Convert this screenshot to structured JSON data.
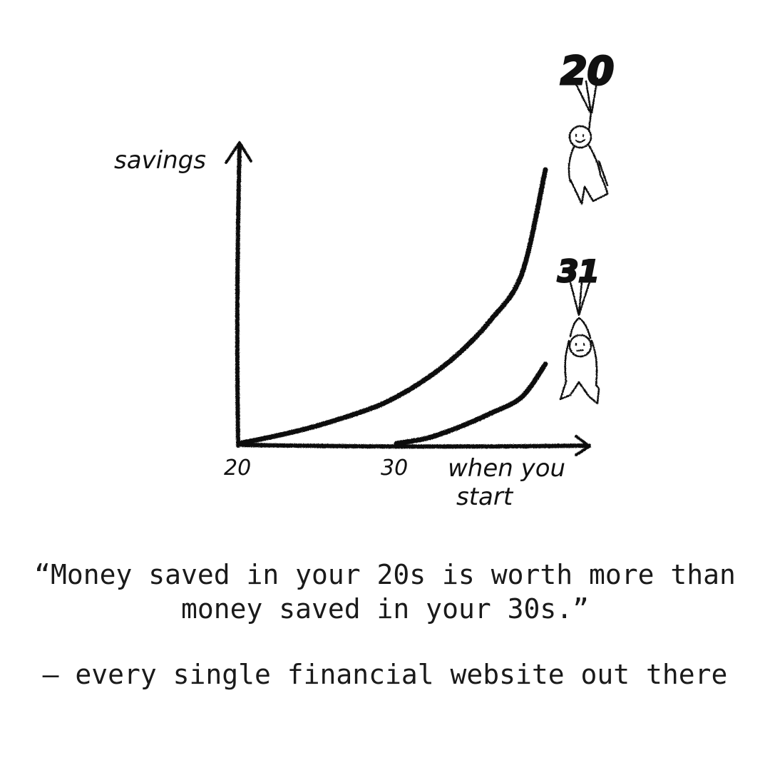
{
  "chart_data": {
    "type": "line",
    "ylabel": "savings",
    "xlabel": "when you start",
    "xlabel_lines": [
      "when you",
      "start"
    ],
    "x_ticks": [
      20,
      30
    ],
    "xlim": [
      20,
      40
    ],
    "ylim": [
      0,
      100
    ],
    "grid": false,
    "series": [
      {
        "name": "20",
        "start": 20,
        "x": [
          20,
          24,
          28,
          30,
          32,
          34,
          36,
          38,
          39.5
        ],
        "y": [
          0,
          5,
          12,
          17,
          24,
          33,
          45,
          62,
          100
        ]
      },
      {
        "name": "30",
        "start": 30,
        "x": [
          30,
          32,
          34,
          36,
          38,
          39.5
        ],
        "y": [
          0,
          2,
          6,
          11,
          17,
          29
        ]
      }
    ],
    "colors": {
      "ink": "#111111"
    }
  },
  "caption": {
    "quote_line1": "“Money saved in your 20s is worth more than",
    "quote_line2": "money saved in your 30s.”",
    "attribution": "— every single financial website out there"
  },
  "illustrations": [
    {
      "balloon_label": "20",
      "icon": "smiling-stick-figure-with-balloons"
    },
    {
      "balloon_label": "31",
      "icon": "worried-stick-figure-with-balloons"
    }
  ]
}
